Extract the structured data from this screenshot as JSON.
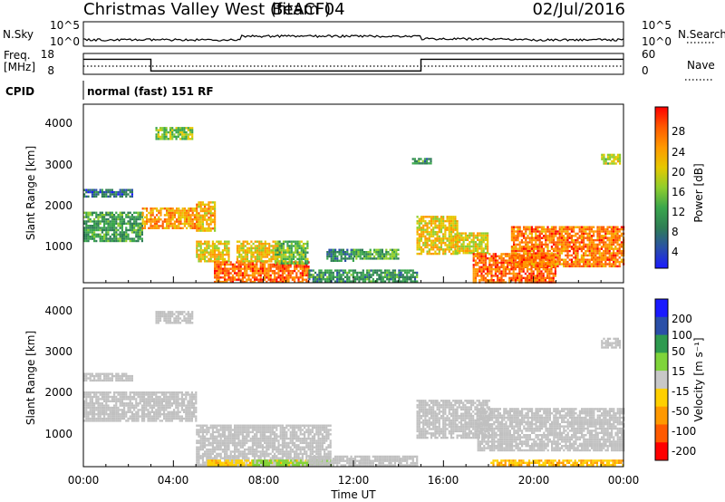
{
  "header": {
    "title": "Christmas Valley West (fitACF)",
    "beam": "Beam 04",
    "date": "02/Jul/2016"
  },
  "noise_panel": {
    "left_label": "N.Sky",
    "right_label": "N.Search",
    "y_ticks_left": [
      "10^5",
      "10^0"
    ],
    "y_ticks_right": [
      "10^5",
      "10^0"
    ]
  },
  "freq_panel": {
    "left_label_1": "Freq.",
    "left_label_2": "[MHz]",
    "y_ticks_left": [
      "18",
      "8"
    ],
    "right_label": "Nave",
    "y_ticks_right": [
      "60",
      "0"
    ],
    "freq_solid": [
      {
        "t": 0.0,
        "f": 15.2
      },
      {
        "t": 3.0,
        "f": 15.2
      },
      {
        "t": 3.0,
        "f": 9.6
      },
      {
        "t": 15.0,
        "f": 9.6
      },
      {
        "t": 15.0,
        "f": 15.2
      },
      {
        "t": 24.0,
        "f": 15.2
      }
    ],
    "nave_dotted": [
      {
        "t": 0.0,
        "f": 11.9
      },
      {
        "t": 24.0,
        "f": 11.9
      }
    ]
  },
  "cpid": {
    "label": "CPID",
    "text": "normal (fast) 151 RF"
  },
  "x_axis": {
    "ticks": [
      "00:00",
      "04:00",
      "08:00",
      "12:00",
      "16:00",
      "20:00",
      "00:00"
    ],
    "label": "Time UT"
  },
  "power_panel": {
    "ylabel": "Slant Range [km]",
    "y_ticks": [
      "4000",
      "3000",
      "2000",
      "1000"
    ],
    "colorbar_label": "Power [dB]",
    "colorbar_ticks": [
      "28",
      "24",
      "20",
      "16",
      "12",
      "8",
      "4"
    ]
  },
  "velocity_panel": {
    "ylabel": "Slant Range [km]",
    "y_ticks": [
      "4000",
      "3000",
      "2000",
      "1000"
    ],
    "colorbar_label": "Velocity [m s⁻¹]",
    "colorbar_ticks": [
      "200",
      "100",
      "50",
      "15",
      "-15",
      "-50",
      "-100",
      "-200"
    ]
  },
  "colors": {
    "power_scale": [
      "#ff0000",
      "#ff5a00",
      "#ff9900",
      "#e6c800",
      "#8fce2d",
      "#3aa64c",
      "#2e7d55",
      "#2a4fa8",
      "#1a1aff"
    ],
    "velocity_scale": [
      "#1a1aff",
      "#2a4fa8",
      "#2e9a4f",
      "#7fd43a",
      "#c8c8c8",
      "#ffd000",
      "#ff9900",
      "#ff5a00",
      "#ff0000"
    ],
    "ground_scatter": "#c0c0c0"
  },
  "chart_data": [
    {
      "type": "heatmap",
      "title": "Power",
      "x_range_hours": [
        0,
        24
      ],
      "y_range_km": [
        180,
        4500
      ],
      "colorbar_range_db": [
        0,
        32
      ],
      "blobs": [
        {
          "t0": 0.0,
          "t1": 2.6,
          "r0": 1200,
          "r1": 1900,
          "db": 11
        },
        {
          "t0": 0.0,
          "t1": 2.2,
          "r0": 2250,
          "r1": 2450,
          "db": 6
        },
        {
          "t0": 2.6,
          "t1": 5.0,
          "r0": 1500,
          "r1": 2000,
          "db": 24
        },
        {
          "t0": 5.0,
          "t1": 5.8,
          "r0": 1450,
          "r1": 2150,
          "db": 22
        },
        {
          "t0": 5.0,
          "t1": 6.5,
          "r0": 700,
          "r1": 1200,
          "db": 20
        },
        {
          "t0": 5.8,
          "t1": 10.0,
          "r0": 200,
          "r1": 700,
          "db": 27
        },
        {
          "t0": 6.8,
          "t1": 8.8,
          "r0": 700,
          "r1": 1200,
          "db": 21
        },
        {
          "t0": 8.5,
          "t1": 10.0,
          "r0": 650,
          "r1": 1200,
          "db": 14
        },
        {
          "t0": 10.0,
          "t1": 14.8,
          "r0": 200,
          "r1": 500,
          "db": 10
        },
        {
          "t0": 10.8,
          "t1": 12.0,
          "r0": 700,
          "r1": 1000,
          "db": 9
        },
        {
          "t0": 12.0,
          "t1": 14.0,
          "r0": 750,
          "r1": 1000,
          "db": 12
        },
        {
          "t0": 14.8,
          "t1": 16.6,
          "r0": 900,
          "r1": 1800,
          "db": 21
        },
        {
          "t0": 16.5,
          "t1": 18.0,
          "r0": 900,
          "r1": 1400,
          "db": 19
        },
        {
          "t0": 17.3,
          "t1": 21.0,
          "r0": 200,
          "r1": 900,
          "db": 27
        },
        {
          "t0": 19.0,
          "t1": 24.0,
          "r0": 600,
          "r1": 1550,
          "db": 26
        },
        {
          "t0": 3.2,
          "t1": 4.8,
          "r0": 3650,
          "r1": 3950,
          "db": 15
        },
        {
          "t0": 14.6,
          "t1": 15.4,
          "r0": 3050,
          "r1": 3200,
          "db": 10
        },
        {
          "t0": 23.0,
          "t1": 23.8,
          "r0": 3050,
          "r1": 3300,
          "db": 18
        }
      ]
    },
    {
      "type": "heatmap",
      "title": "Velocity",
      "x_range_hours": [
        0,
        24
      ],
      "y_range_km": [
        180,
        4500
      ],
      "colorbar_range_ms": [
        -200,
        200
      ],
      "blobs": [
        {
          "t0": 0.0,
          "t1": 5.0,
          "r0": 1300,
          "r1": 2000,
          "v": 0
        },
        {
          "t0": 0.0,
          "t1": 2.2,
          "r0": 2250,
          "r1": 2450,
          "v": 0
        },
        {
          "t0": 5.0,
          "t1": 11.0,
          "r0": 250,
          "r1": 1200,
          "v": 0
        },
        {
          "t0": 5.5,
          "t1": 10.0,
          "r0": 200,
          "r1": 350,
          "v": -60
        },
        {
          "t0": 7.5,
          "t1": 11.0,
          "r0": 200,
          "r1": 350,
          "v": 40
        },
        {
          "t0": 10.0,
          "t1": 14.8,
          "r0": 200,
          "r1": 450,
          "v": 0
        },
        {
          "t0": 14.8,
          "t1": 18.0,
          "r0": 900,
          "r1": 1800,
          "v": 0
        },
        {
          "t0": 17.5,
          "t1": 24.0,
          "r0": 600,
          "r1": 1600,
          "v": 0
        },
        {
          "t0": 18.0,
          "t1": 24.0,
          "r0": 200,
          "r1": 350,
          "v": -70
        },
        {
          "t0": 3.2,
          "t1": 4.8,
          "r0": 3650,
          "r1": 3950,
          "v": 0
        },
        {
          "t0": 23.0,
          "t1": 23.8,
          "r0": 3050,
          "r1": 3300,
          "v": 0
        }
      ]
    }
  ]
}
